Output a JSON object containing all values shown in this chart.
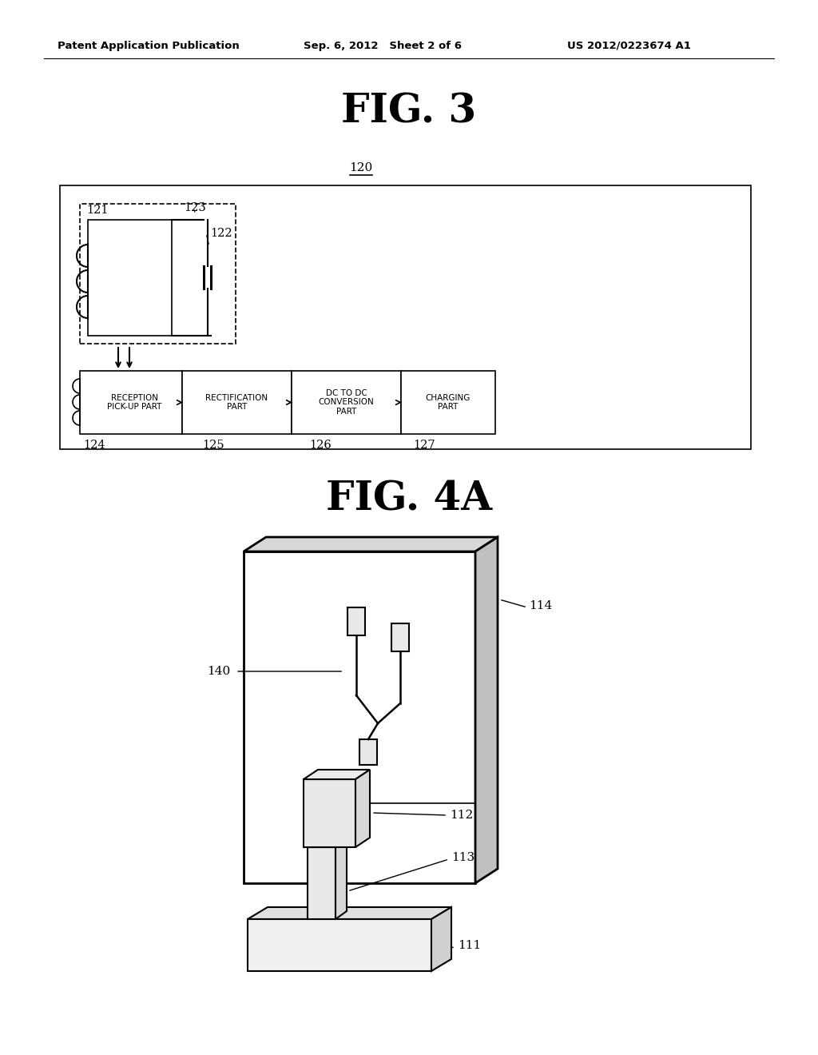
{
  "background_color": "#ffffff",
  "header_left": "Patent Application Publication",
  "header_center": "Sep. 6, 2012   Sheet 2 of 6",
  "header_right": "US 2012/0223674 A1",
  "fig3_title": "FIG. 3",
  "fig4a_title": "FIG. 4A",
  "label_120": "120",
  "label_121": "121",
  "label_122": "122",
  "label_123": "123",
  "label_124": "124",
  "label_125": "125",
  "label_126": "126",
  "label_127": "127",
  "label_111": "111",
  "label_112": "112",
  "label_113": "113",
  "label_114": "114",
  "label_140": "140"
}
